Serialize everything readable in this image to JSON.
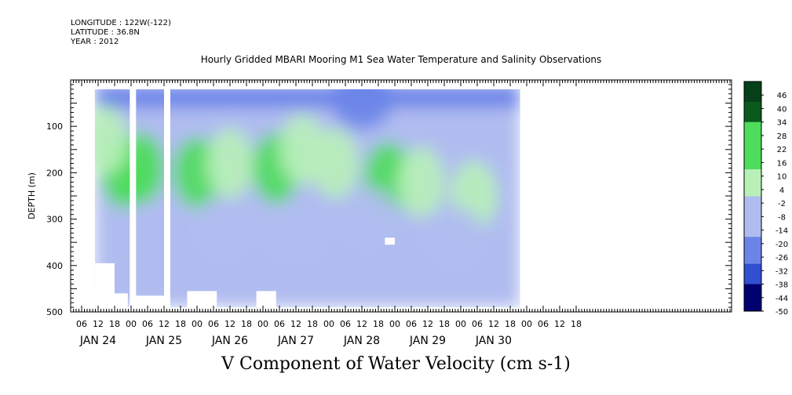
{
  "header": {
    "longitude": "LONGITUDE : 122W(-122)",
    "latitude": "LATITUDE : 36.8N",
    "year": "YEAR : 2012"
  },
  "chart_data": {
    "type": "heatmap",
    "title": "Hourly Gridded MBARI Mooring M1 Sea Water Temperature and Salinity Observations",
    "caption": "V Component of Water Velocity (cm s-1)",
    "ylabel": "DEPTH (m)",
    "ylim": [
      500,
      0
    ],
    "y_ticks": [
      100,
      200,
      300,
      400,
      500
    ],
    "x_hour_ticks": [
      "06",
      "12",
      "18",
      "00",
      "06",
      "12",
      "18",
      "00",
      "06",
      "12",
      "18",
      "00",
      "06",
      "12",
      "18",
      "00",
      "06",
      "12",
      "18",
      "00",
      "06",
      "12",
      "18",
      "00",
      "06",
      "12",
      "18",
      "00",
      "06",
      "12",
      "18"
    ],
    "x_day_labels": [
      "JAN 24",
      "JAN 25",
      "JAN 26",
      "JAN 27",
      "JAN 28",
      "JAN 29",
      "JAN 30"
    ],
    "colorbar_labels": [
      "46",
      "40",
      "34",
      "28",
      "22",
      "16",
      "10",
      "4",
      "-2",
      "-8",
      "-14",
      "-20",
      "-26",
      "-32",
      "-38",
      "-44",
      "-50"
    ],
    "colorbar_range": [
      -50,
      52
    ],
    "colors": {
      "positive_light": "#b8f0b8",
      "positive": "#4ddc5c",
      "positive_dark": "#0a5a1e",
      "negative_light": "#b0bcf0",
      "negative": "#6c84e8",
      "negative_dark": "#000070"
    },
    "features": [
      {
        "day": 24.9,
        "depth": 200,
        "value": 12
      },
      {
        "day": 25.15,
        "depth": 190,
        "value": 14
      },
      {
        "day": 26.0,
        "depth": 200,
        "value": 12
      },
      {
        "day": 26.5,
        "depth": 180,
        "value": 10
      },
      {
        "day": 27.2,
        "depth": 190,
        "value": 12
      },
      {
        "day": 27.6,
        "depth": 150,
        "value": 10
      },
      {
        "day": 28.1,
        "depth": 180,
        "value": 8
      },
      {
        "day": 28.9,
        "depth": 210,
        "value": 12
      },
      {
        "day": 29.4,
        "depth": 220,
        "value": 10
      },
      {
        "day": 30.2,
        "depth": 250,
        "value": 10
      },
      {
        "day": 24.6,
        "depth": 130,
        "value": 8
      },
      {
        "day": 26.4,
        "depth": 320,
        "value": -10
      },
      {
        "day": 27.5,
        "depth": 330,
        "value": -8
      },
      {
        "day": 28.6,
        "depth": 300,
        "value": -8
      },
      {
        "day": 29.9,
        "depth": 340,
        "value": -8
      },
      {
        "day": 28.5,
        "depth": 40,
        "value": -18
      }
    ]
  }
}
